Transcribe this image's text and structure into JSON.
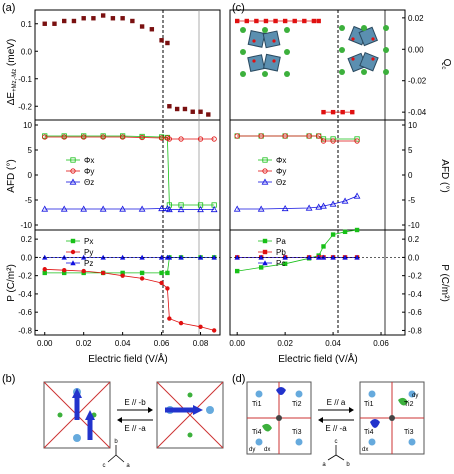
{
  "panel_labels": {
    "a": "(a)",
    "b": "(b)",
    "c": "(c)",
    "d": "(d)"
  },
  "axes": {
    "left_top_ylabel": "ΔE",
    "left_top_ylabel_sub": "+Mz,-Mz",
    "left_top_ylabel_unit": " (meV)",
    "mid_ylabel": "AFD (°)",
    "bot_ylabel": "P (C/m²)",
    "right_top_ylabel": "Q",
    "right_top_ylabel_sub": "c",
    "xlabel": "Electric field (V/Å)"
  },
  "ticks": {
    "x_left": [
      "0.00",
      "0.02",
      "0.04",
      "0.06",
      "0.08"
    ],
    "x_right": [
      "0.00",
      "0.02",
      "0.04",
      "0.06"
    ],
    "dE": [
      "0.1",
      "0.0",
      "-0.1",
      "-0.2"
    ],
    "Qc": [
      "0.02",
      "0.00",
      "-0.02",
      "-0.04"
    ],
    "AFD": [
      "10",
      "5",
      "0",
      "-5",
      "-10"
    ],
    "P": [
      "0.2",
      "0.0",
      "-0.2",
      "-0.4",
      "-0.6",
      "-0.8"
    ]
  },
  "legends": {
    "a_mid": [
      "Φx",
      "Φy",
      "Θz"
    ],
    "a_bot": [
      "Px",
      "Py",
      "Pz"
    ],
    "c_mid": [
      "Φx",
      "Φy",
      "Θz"
    ],
    "c_bot": [
      "Pa",
      "Pb",
      "Pc"
    ]
  },
  "schematic_b": {
    "forward": "E // -b",
    "backward": "E // -a",
    "axis_b": "b",
    "axis_a": "a",
    "axis_c": "c"
  },
  "schematic_d": {
    "forward": "E // a",
    "backward": "E // -a",
    "axis_c": "c",
    "axis_a": "a",
    "axis_b": "b",
    "ti_labels": [
      "Ti1",
      "Ti2",
      "Ti3",
      "Ti4"
    ],
    "d_labels": [
      "dy",
      "dx",
      "dx",
      "dy"
    ]
  },
  "colors": {
    "green": "#18c018",
    "red": "#e01010",
    "blue": "#1010e0",
    "darkred": "#7a1010",
    "gray": "#808080"
  },
  "chart_data": [
    {
      "panel": "(a) top",
      "type": "scatter",
      "xlim": [
        -0.005,
        0.09
      ],
      "ylim": [
        -0.25,
        0.15
      ],
      "series": [
        {
          "x": [
            0.0,
            0.005,
            0.01,
            0.015,
            0.02,
            0.025,
            0.03,
            0.035,
            0.04,
            0.045,
            0.05,
            0.055,
            0.06,
            0.063
          ],
          "y": [
            0.1,
            0.1,
            0.11,
            0.11,
            0.12,
            0.12,
            0.13,
            0.12,
            0.12,
            0.11,
            0.09,
            0.08,
            0.04,
            0.03
          ]
        },
        {
          "x": [
            0.064,
            0.068,
            0.072,
            0.076,
            0.08,
            0.084
          ],
          "y": [
            -0.2,
            -0.21,
            -0.21,
            -0.22,
            -0.22,
            -0.23
          ]
        }
      ]
    },
    {
      "panel": "(a) middle",
      "type": "line",
      "xlim": [
        -0.005,
        0.09
      ],
      "ylim": [
        -11,
        11
      ],
      "series": [
        {
          "name": "Φx",
          "x": [
            0,
            0.01,
            0.02,
            0.03,
            0.04,
            0.05,
            0.06,
            0.063,
            0.064,
            0.07,
            0.08,
            0.087
          ],
          "y": [
            7.8,
            7.8,
            7.8,
            7.8,
            7.8,
            7.7,
            7.6,
            7.5,
            -6.0,
            -6.0,
            -6.0,
            -6.0
          ]
        },
        {
          "name": "Φy",
          "x": [
            0,
            0.01,
            0.02,
            0.03,
            0.04,
            0.05,
            0.06,
            0.063,
            0.064,
            0.07,
            0.08,
            0.087
          ],
          "y": [
            7.6,
            7.6,
            7.6,
            7.6,
            7.6,
            7.5,
            7.4,
            7.4,
            7.2,
            7.2,
            7.2,
            7.2
          ]
        },
        {
          "name": "Θz",
          "x": [
            0,
            0.01,
            0.02,
            0.03,
            0.04,
            0.05,
            0.06,
            0.063,
            0.064,
            0.07,
            0.08,
            0.087
          ],
          "y": [
            -6.8,
            -6.8,
            -6.8,
            -6.8,
            -6.8,
            -6.8,
            -6.7,
            -6.7,
            -6.9,
            -6.9,
            -6.9,
            -6.9
          ]
        }
      ]
    },
    {
      "panel": "(a) bottom",
      "type": "line",
      "xlim": [
        -0.005,
        0.09
      ],
      "ylim": [
        -0.85,
        0.3
      ],
      "series": [
        {
          "name": "Px",
          "x": [
            0,
            0.01,
            0.02,
            0.03,
            0.04,
            0.05,
            0.06,
            0.063,
            0.064,
            0.07,
            0.08,
            0.087
          ],
          "y": [
            -0.17,
            -0.17,
            -0.17,
            -0.17,
            -0.17,
            -0.17,
            -0.17,
            -0.17,
            0.0,
            0.0,
            0.0,
            0.0
          ]
        },
        {
          "name": "Py",
          "x": [
            0,
            0.01,
            0.02,
            0.03,
            0.04,
            0.05,
            0.06,
            0.063,
            0.064,
            0.07,
            0.08,
            0.087
          ],
          "y": [
            -0.13,
            -0.14,
            -0.15,
            -0.17,
            -0.2,
            -0.23,
            -0.28,
            -0.34,
            -0.67,
            -0.72,
            -0.76,
            -0.8
          ]
        },
        {
          "name": "Pz",
          "x": [
            0,
            0.01,
            0.02,
            0.03,
            0.04,
            0.05,
            0.06,
            0.063,
            0.064,
            0.07,
            0.08,
            0.087
          ],
          "y": [
            0.0,
            0.0,
            0.0,
            0.0,
            0.0,
            0.0,
            0.0,
            0.0,
            0.0,
            0.0,
            0.0,
            0.0
          ]
        }
      ]
    },
    {
      "panel": "(c) top",
      "type": "scatter",
      "xlim": [
        -0.003,
        0.07
      ],
      "ylim": [
        -0.045,
        0.025
      ],
      "series": [
        {
          "x": [
            0,
            0.004,
            0.008,
            0.012,
            0.016,
            0.02,
            0.024,
            0.028,
            0.032,
            0.034
          ],
          "y": [
            0.018,
            0.018,
            0.018,
            0.018,
            0.018,
            0.018,
            0.018,
            0.018,
            0.018,
            0.018
          ]
        },
        {
          "x": [
            0.036,
            0.04,
            0.044,
            0.048
          ],
          "y": [
            -0.04,
            -0.04,
            -0.04,
            -0.04
          ]
        }
      ]
    },
    {
      "panel": "(c) middle",
      "type": "line",
      "xlim": [
        -0.003,
        0.07
      ],
      "ylim": [
        -11,
        11
      ],
      "series": [
        {
          "name": "Φx",
          "x": [
            0,
            0.01,
            0.02,
            0.03,
            0.034,
            0.036,
            0.04,
            0.05
          ],
          "y": [
            7.8,
            7.8,
            7.8,
            7.8,
            7.8,
            7.2,
            7.2,
            7.2
          ]
        },
        {
          "name": "Φy",
          "x": [
            0,
            0.01,
            0.02,
            0.03,
            0.034,
            0.036,
            0.04,
            0.05
          ],
          "y": [
            7.8,
            7.8,
            7.8,
            7.8,
            7.8,
            6.8,
            6.8,
            6.8
          ]
        },
        {
          "name": "Θz",
          "x": [
            0,
            0.01,
            0.02,
            0.03,
            0.034,
            0.036,
            0.04,
            0.045,
            0.05
          ],
          "y": [
            -6.8,
            -6.8,
            -6.7,
            -6.6,
            -6.4,
            -6.2,
            -5.8,
            -5.2,
            -4.2
          ]
        }
      ]
    },
    {
      "panel": "(c) bottom",
      "type": "line",
      "xlim": [
        -0.003,
        0.07
      ],
      "ylim": [
        -0.85,
        0.3
      ],
      "series": [
        {
          "name": "Pa",
          "x": [
            0,
            0.01,
            0.02,
            0.03,
            0.034,
            0.036,
            0.04,
            0.045,
            0.05
          ],
          "y": [
            -0.15,
            -0.11,
            -0.07,
            -0.01,
            0.02,
            0.12,
            0.25,
            0.28,
            0.3
          ]
        },
        {
          "name": "Pb",
          "x": [
            0,
            0.01,
            0.02,
            0.03,
            0.034,
            0.036,
            0.04,
            0.045,
            0.05
          ],
          "y": [
            0.0,
            0.0,
            0.0,
            0.0,
            0.0,
            0.0,
            0.0,
            0.0,
            0.0
          ]
        },
        {
          "name": "Pc",
          "x": [
            0,
            0.01,
            0.02,
            0.03,
            0.034,
            0.036,
            0.04,
            0.045,
            0.05
          ],
          "y": [
            0.0,
            0.0,
            0.0,
            0.0,
            0.0,
            0.0,
            0.0,
            0.0,
            0.0
          ]
        }
      ]
    }
  ]
}
